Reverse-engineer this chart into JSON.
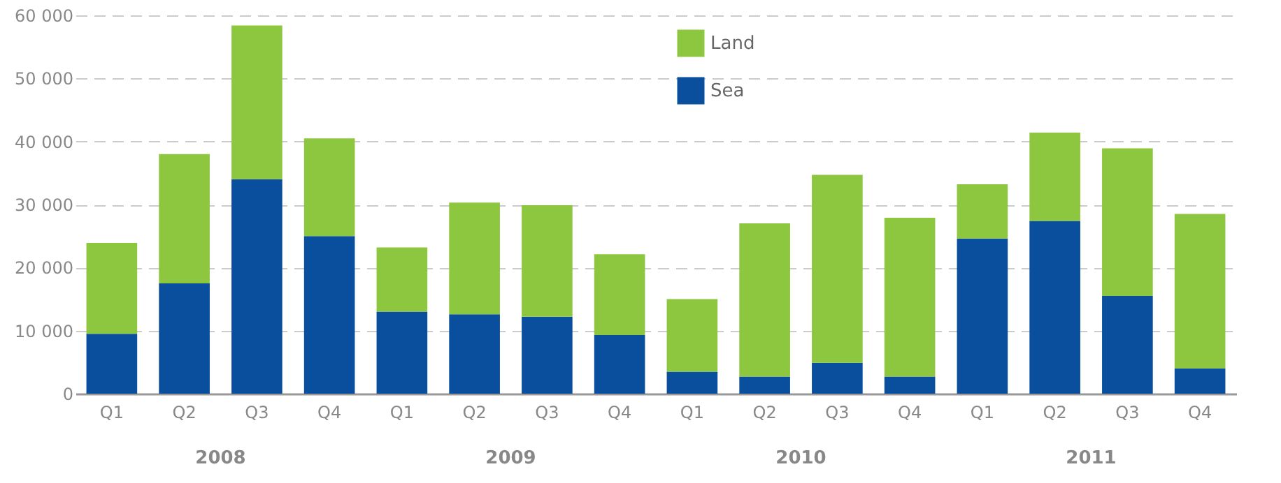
{
  "chart_data": {
    "type": "bar",
    "stacked": true,
    "categories": [
      "Q1",
      "Q2",
      "Q3",
      "Q4",
      "Q1",
      "Q2",
      "Q3",
      "Q4",
      "Q1",
      "Q2",
      "Q3",
      "Q4",
      "Q1",
      "Q2",
      "Q3",
      "Q4"
    ],
    "series": [
      {
        "name": "Sea",
        "color": "#0a4f9e",
        "values": [
          9500,
          17500,
          34000,
          25000,
          13000,
          12600,
          12200,
          9300,
          3500,
          2700,
          4900,
          2700,
          24600,
          27400,
          15500,
          4000
        ]
      },
      {
        "name": "Land",
        "color": "#8dc63f",
        "values": [
          14400,
          20500,
          24400,
          15500,
          10200,
          17700,
          17700,
          12800,
          11500,
          24300,
          29800,
          25200,
          8600,
          14000,
          23400,
          24500
        ]
      }
    ],
    "annotations": [
      "2008",
      "2009",
      "2010",
      "2011"
    ],
    "ylim": [
      0,
      60000
    ],
    "yticks": [
      0,
      {
        "value": 10000,
        "label": "10 000"
      },
      {
        "value": 20000,
        "label": "20 000"
      },
      {
        "value": 30000,
        "label": "30 000"
      },
      {
        "value": 40000,
        "label": "40 000"
      },
      {
        "value": 50000,
        "label": "50 000"
      },
      {
        "value": 60000,
        "label": "60 000"
      }
    ],
    "grid": "y",
    "legend": "top"
  }
}
